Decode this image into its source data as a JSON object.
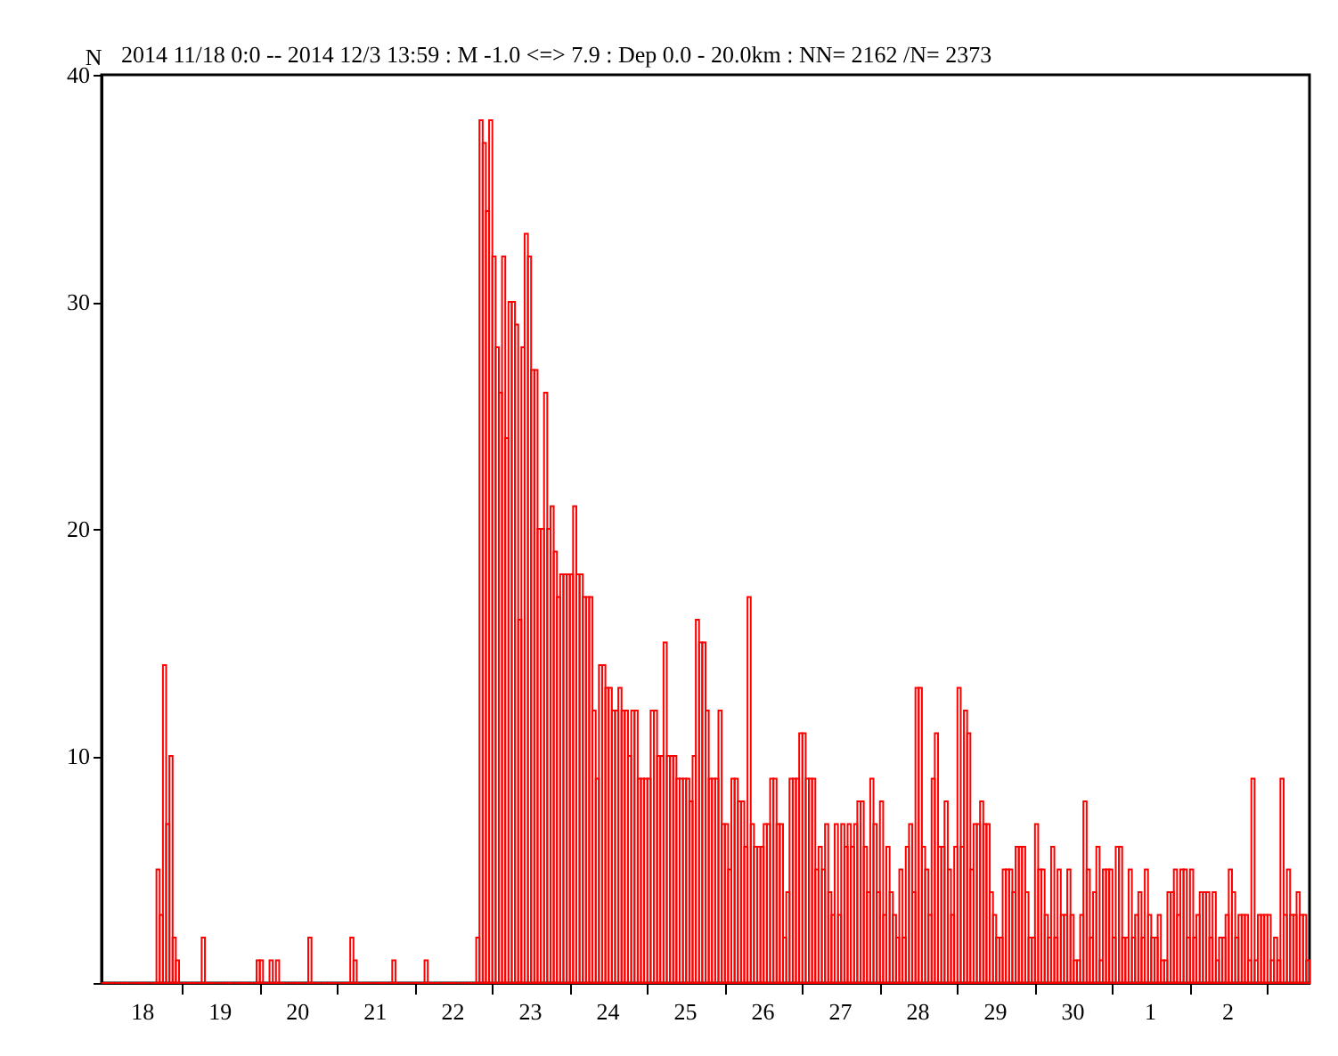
{
  "chart_data": {
    "type": "bar",
    "title": "2014 11/18 0:0 -- 2014 12/3 13:59  : M -1.0 <=> 7.9  :  Dep 0.0 - 20.0km :  NN= 2162 /N= 2373",
    "ylabel": "N",
    "color": "#ff0000",
    "grid": false,
    "categories": [
      null,
      null,
      null,
      null,
      null,
      null,
      null,
      null,
      null,
      null,
      null,
      null,
      "18",
      null,
      null,
      null,
      null,
      null,
      null,
      null,
      null,
      null,
      null,
      null,
      null,
      null,
      null,
      null,
      null,
      null,
      null,
      null,
      null,
      null,
      null,
      null,
      "19",
      null,
      null,
      null,
      null,
      null,
      null,
      null,
      null,
      null,
      null,
      null,
      null,
      null,
      null,
      null,
      null,
      null,
      null,
      null,
      null,
      null,
      null,
      null,
      "20",
      null,
      null,
      null,
      null,
      null,
      null,
      null,
      null,
      null,
      null,
      null,
      null,
      null,
      null,
      null,
      null,
      null,
      null,
      null,
      null,
      null,
      null,
      null,
      "21",
      null,
      null,
      null,
      null,
      null,
      null,
      null,
      null,
      null,
      null,
      null,
      null,
      null,
      null,
      null,
      null,
      null,
      null,
      null,
      null,
      null,
      null,
      null,
      "22",
      null,
      null,
      null,
      null,
      null,
      null,
      null,
      null,
      null,
      null,
      null,
      null,
      null,
      null,
      null,
      null,
      null,
      null,
      null,
      null,
      null,
      null,
      null,
      "23",
      null,
      null,
      null,
      null,
      null,
      null,
      null,
      null,
      null,
      null,
      null,
      null,
      null,
      null,
      null,
      null,
      null,
      null,
      null,
      null,
      null,
      null,
      null,
      "24",
      null,
      null,
      null,
      null,
      null,
      null,
      null,
      null,
      null,
      null,
      null,
      null,
      null,
      null,
      null,
      null,
      null,
      null,
      null,
      null,
      null,
      null,
      null,
      "25",
      null,
      null,
      null,
      null,
      null,
      null,
      null,
      null,
      null,
      null,
      null,
      null,
      null,
      null,
      null,
      null,
      null,
      null,
      null,
      null,
      null,
      null,
      null,
      "26",
      null,
      null,
      null,
      null,
      null,
      null,
      null,
      null,
      null,
      null,
      null,
      null,
      null,
      null,
      null,
      null,
      null,
      null,
      null,
      null,
      null,
      null,
      null,
      "27",
      null,
      null,
      null,
      null,
      null,
      null,
      null,
      null,
      null,
      null,
      null,
      null,
      null,
      null,
      null,
      null,
      null,
      null,
      null,
      null,
      null,
      null,
      null,
      "28",
      null,
      null,
      null,
      null,
      null,
      null,
      null,
      null,
      null,
      null,
      null,
      null,
      null,
      null,
      null,
      null,
      null,
      null,
      null,
      null,
      null,
      null,
      null,
      "29",
      null,
      null,
      null,
      null,
      null,
      null,
      null,
      null,
      null,
      null,
      null,
      null,
      null,
      null,
      null,
      null,
      null,
      null,
      null,
      null,
      null,
      null,
      null,
      "30",
      null,
      null,
      null,
      null,
      null,
      null,
      null,
      null,
      null,
      null,
      null,
      null,
      null,
      null,
      null,
      null,
      null,
      null,
      null,
      null,
      null,
      null,
      null,
      "1",
      null,
      null,
      null,
      null,
      null,
      null,
      null,
      null,
      null,
      null,
      null,
      null,
      null,
      null,
      null,
      null,
      null,
      null,
      null,
      null,
      null,
      null,
      null,
      "2",
      null,
      null,
      null,
      null,
      null,
      null,
      null,
      null,
      null,
      null,
      null,
      null,
      null,
      null,
      null,
      null,
      null,
      null,
      null,
      null,
      null,
      null,
      null,
      null,
      null
    ],
    "values": [
      0,
      0,
      0,
      0,
      0,
      0,
      0,
      0,
      0,
      0,
      0,
      0,
      0,
      0,
      0,
      0,
      0,
      5,
      3,
      14,
      7,
      10,
      2,
      1,
      0,
      0,
      0,
      0,
      0,
      0,
      0,
      2,
      0,
      0,
      0,
      0,
      0,
      0,
      0,
      0,
      0,
      0,
      0,
      0,
      0,
      0,
      0,
      0,
      1,
      1,
      0,
      0,
      1,
      0,
      1,
      0,
      0,
      0,
      0,
      0,
      0,
      0,
      0,
      0,
      2,
      0,
      0,
      0,
      0,
      0,
      0,
      0,
      0,
      0,
      0,
      0,
      0,
      2,
      1,
      0,
      0,
      0,
      0,
      0,
      0,
      0,
      0,
      0,
      0,
      0,
      1,
      0,
      0,
      0,
      0,
      0,
      0,
      0,
      0,
      0,
      1,
      0,
      0,
      0,
      0,
      0,
      0,
      0,
      0,
      0,
      0,
      0,
      0,
      0,
      0,
      0,
      2,
      38,
      37,
      34,
      38,
      32,
      28,
      26,
      32,
      24,
      30,
      30,
      29,
      16,
      28,
      33,
      32,
      27,
      27,
      20,
      20,
      26,
      20,
      21,
      19,
      17,
      18,
      18,
      18,
      18,
      21,
      18,
      18,
      17,
      17,
      17,
      12,
      9,
      14,
      14,
      13,
      13,
      12,
      12,
      13,
      12,
      12,
      10,
      12,
      12,
      9,
      9,
      9,
      9,
      12,
      12,
      10,
      10,
      15,
      10,
      10,
      10,
      9,
      9,
      9,
      9,
      8,
      10,
      16,
      15,
      15,
      12,
      9,
      9,
      9,
      12,
      7,
      7,
      5,
      9,
      9,
      8,
      8,
      6,
      17,
      7,
      6,
      6,
      6,
      7,
      7,
      9,
      9,
      7,
      7,
      2,
      4,
      9,
      9,
      9,
      11,
      11,
      9,
      9,
      9,
      5,
      6,
      5,
      7,
      4,
      3,
      7,
      3,
      7,
      6,
      7,
      6,
      7,
      8,
      8,
      6,
      4,
      9,
      7,
      4,
      8,
      3,
      6,
      4,
      3,
      2,
      5,
      2,
      6,
      7,
      4,
      13,
      13,
      6,
      5,
      3,
      9,
      11,
      6,
      6,
      8,
      5,
      3,
      6,
      13,
      6,
      12,
      11,
      5,
      7,
      7,
      8,
      7,
      7,
      4,
      3,
      2,
      2,
      5,
      5,
      5,
      4,
      6,
      6,
      6,
      4,
      2,
      2,
      7,
      5,
      5,
      3,
      2,
      6,
      2,
      5,
      3,
      3,
      5,
      3,
      1,
      1,
      3,
      8,
      5,
      2,
      4,
      6,
      1,
      5,
      5,
      5,
      2,
      6,
      6,
      2,
      2,
      5,
      2,
      3,
      4,
      2,
      5,
      3,
      2,
      2,
      3,
      1,
      1,
      4,
      4,
      5,
      3,
      5,
      5,
      2,
      5,
      2,
      3,
      4,
      4,
      4,
      2,
      4,
      1,
      2,
      2,
      3,
      5,
      4,
      2,
      3,
      3,
      3,
      1,
      9,
      1,
      3,
      3,
      3,
      3,
      1,
      2,
      1,
      9,
      3,
      5,
      3,
      3,
      4,
      3,
      3,
      1
    ],
    "ylim": [
      0,
      40
    ],
    "yticks": [
      {
        "value": 0,
        "label": null
      },
      10,
      20,
      30,
      40
    ]
  }
}
